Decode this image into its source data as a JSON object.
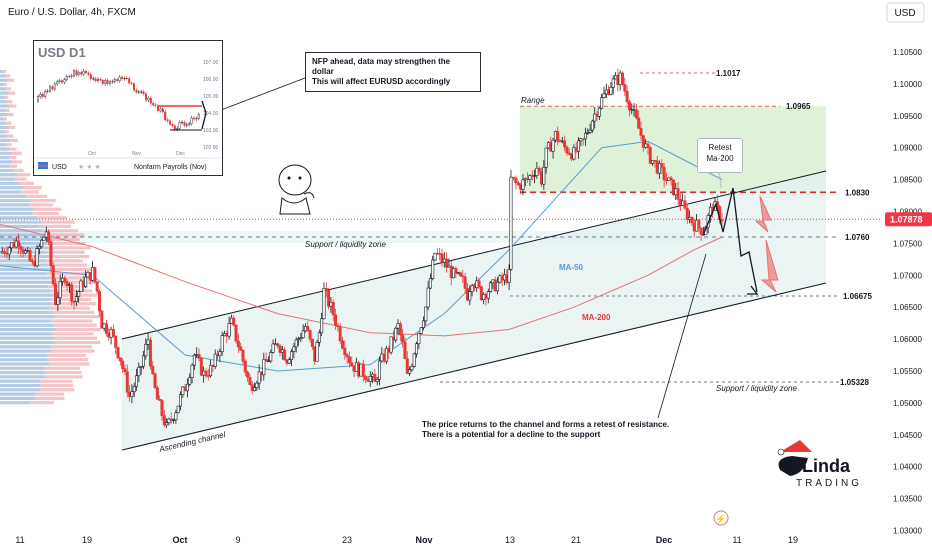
{
  "header": {
    "symbol_title": "Euro / U.S. Dollar, 4h, FXCM",
    "currency_button": "USD"
  },
  "chart_data": {
    "type": "candlestick",
    "title": "Euro / U.S. Dollar, 4h, FXCM",
    "y_axis": {
      "currency": "USD",
      "ticks": [
        "1.10500",
        "1.10000",
        "1.09500",
        "1.09000",
        "1.08500",
        "1.08000",
        "1.07500",
        "1.07000",
        "1.06500",
        "1.06000",
        "1.05500",
        "1.05000",
        "1.04500",
        "1.04000",
        "1.03500",
        "1.03000"
      ]
    },
    "x_axis": {
      "ticks": [
        "11",
        "19",
        "Oct",
        "9",
        "23",
        "Nov",
        "13",
        "21",
        "Dec",
        "11",
        "19"
      ]
    },
    "current_price": {
      "label": "1.07878",
      "color": "#f23645"
    },
    "price_path": [
      [
        0,
        1.0735
      ],
      [
        2,
        1.0755
      ],
      [
        3.5,
        1.0715
      ],
      [
        5,
        1.077
      ],
      [
        6,
        1.066
      ],
      [
        7,
        1.07
      ],
      [
        8,
        1.066
      ],
      [
        9,
        1.069
      ],
      [
        10,
        1.0705
      ],
      [
        10.5,
        1.0675
      ],
      [
        11,
        1.0625
      ],
      [
        12,
        1.061
      ],
      [
        13,
        1.057
      ],
      [
        14,
        1.051
      ],
      [
        15,
        1.0545
      ],
      [
        16,
        1.06
      ],
      [
        16.5,
        1.0535
      ],
      [
        17,
        1.0505
      ],
      [
        18,
        1.046
      ],
      [
        19,
        1.049
      ],
      [
        20,
        1.0525
      ],
      [
        21,
        1.0575
      ],
      [
        22,
        1.0545
      ],
      [
        23,
        1.0555
      ],
      [
        24,
        1.06
      ],
      [
        25,
        1.0625
      ],
      [
        26,
        1.058
      ],
      [
        27,
        1.0525
      ],
      [
        28,
        1.0545
      ],
      [
        29,
        1.057
      ],
      [
        30,
        1.0595
      ],
      [
        31,
        1.057
      ],
      [
        32,
        1.0595
      ],
      [
        33,
        1.062
      ],
      [
        34,
        1.057
      ],
      [
        34.5,
        1.061
      ],
      [
        35,
        1.0675
      ],
      [
        36,
        1.064
      ],
      [
        37,
        1.0595
      ],
      [
        38,
        1.056
      ],
      [
        39,
        1.055
      ],
      [
        40,
        1.054
      ],
      [
        40.5,
        1.053
      ],
      [
        41,
        1.056
      ],
      [
        42,
        1.0585
      ],
      [
        43,
        1.062
      ],
      [
        43.5,
        1.059
      ],
      [
        44,
        1.054
      ],
      [
        44.5,
        1.0565
      ],
      [
        45,
        1.06
      ],
      [
        46,
        1.065
      ],
      [
        46.5,
        1.0695
      ],
      [
        47,
        1.0735
      ],
      [
        48,
        1.072
      ],
      [
        49,
        1.07
      ],
      [
        50,
        1.069
      ],
      [
        50.5,
        1.067
      ],
      [
        51,
        1.0695
      ],
      [
        52,
        1.067
      ],
      [
        53,
        1.068
      ],
      [
        54,
        1.069
      ],
      [
        55,
        1.07
      ],
      [
        55.2,
        1.085
      ],
      [
        56,
        1.084
      ],
      [
        57,
        1.085
      ],
      [
        58,
        1.087
      ],
      [
        58.5,
        1.085
      ],
      [
        59,
        1.089
      ],
      [
        60,
        1.092
      ],
      [
        61,
        1.09
      ],
      [
        62,
        1.089
      ],
      [
        63,
        1.091
      ],
      [
        64,
        1.0945
      ],
      [
        65,
        1.0975
      ],
      [
        66,
        1.1
      ],
      [
        67,
        1.101
      ],
      [
        68,
        1.097
      ],
      [
        69,
        1.093
      ],
      [
        70,
        1.089
      ],
      [
        71,
        1.087
      ],
      [
        72,
        1.085
      ],
      [
        73,
        1.083
      ],
      [
        74,
        1.08
      ],
      [
        75,
        1.078
      ],
      [
        76,
        1.077
      ],
      [
        77,
        1.081
      ],
      [
        78,
        1.079
      ]
    ],
    "volume_profile": true,
    "series": [
      {
        "name": "MA-50",
        "color": "#5b9bd5",
        "path": [
          [
            0,
            1.0715
          ],
          [
            10,
            1.07
          ],
          [
            20,
            1.0575
          ],
          [
            30,
            1.055
          ],
          [
            40,
            1.056
          ],
          [
            48,
            1.064
          ],
          [
            55,
            1.074
          ],
          [
            60,
            1.082
          ],
          [
            65,
            1.09
          ],
          [
            70,
            1.091
          ],
          [
            74,
            1.088
          ],
          [
            78,
            1.085
          ]
        ]
      },
      {
        "name": "MA-200",
        "color": "#e57373",
        "path": [
          [
            0,
            1.078
          ],
          [
            10,
            1.0745
          ],
          [
            20,
            1.069
          ],
          [
            30,
            1.064
          ],
          [
            40,
            1.061
          ],
          [
            48,
            1.0605
          ],
          [
            55,
            1.0615
          ],
          [
            62,
            1.065
          ],
          [
            70,
            1.07
          ],
          [
            75,
            1.074
          ],
          [
            78,
            1.076
          ]
        ]
      }
    ],
    "annotations": {
      "inset_title": "USD  D1",
      "inset_ticks": [
        "107.00",
        "106.00",
        "105.00",
        "104.00",
        "103.00",
        "102.00"
      ],
      "inset_months": [
        "Oct",
        "Nov",
        "Dec"
      ],
      "inset_legend_ccy": "USD",
      "inset_legend_event": "Nonfarm Payrolls (Nov)",
      "nfp_note_line1": "NFP ahead, data may strengthen the dollar",
      "nfp_note_line2": "This will affect EURUSD accordingly",
      "range_label": "Range",
      "retest_line1": "Retest",
      "retest_line2": "Ma-200",
      "support_zone_label": "Support / liquidity zone",
      "support_zone_label2": "Support / liquidity zone",
      "ascending_channel": "Ascending channel",
      "ma50_label": "MA-50",
      "ma200_label": "MA-200",
      "level_11017": "1.1017",
      "level_10965": "1.0965",
      "level_10830": "1.0830",
      "level_10760": "1.0760",
      "level_106675": "1.06675",
      "level_105328": "1.05328",
      "bottom_note_line1": "The price returns to the channel and forms a retest of resistance.",
      "bottom_note_line2": "There is a potential for a decline to the support",
      "brand_top": "Linda",
      "brand_bottom": "TRADING"
    }
  }
}
